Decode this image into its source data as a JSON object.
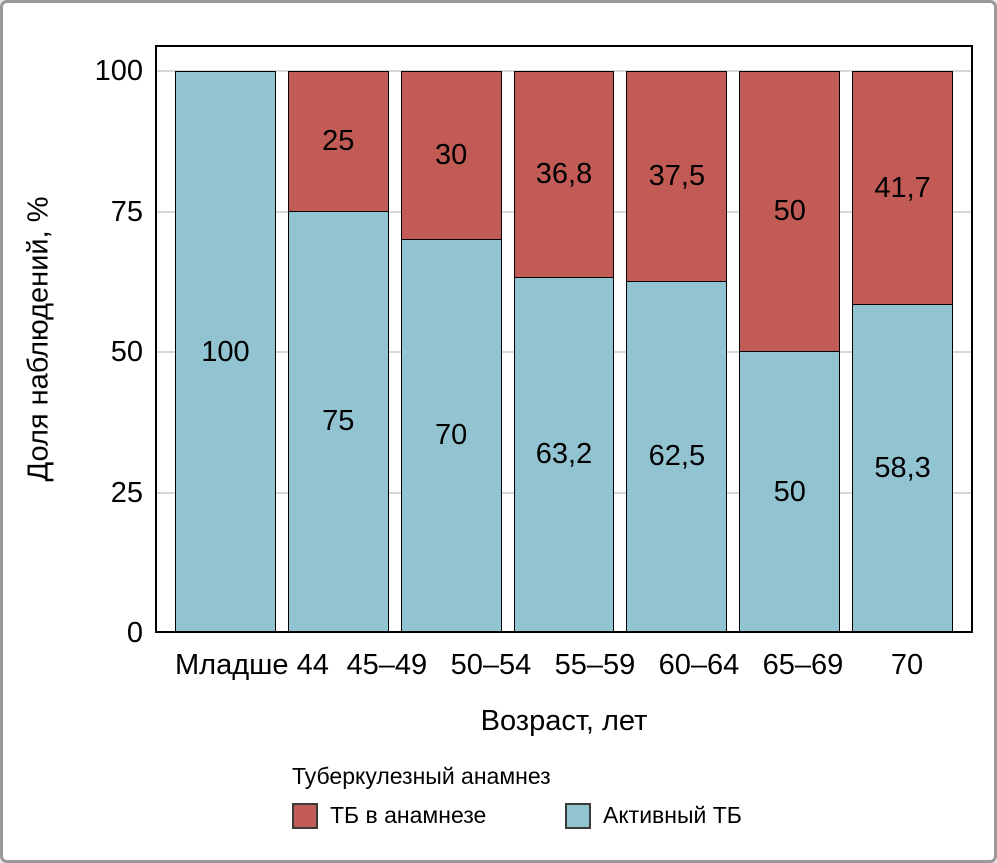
{
  "chart_data": {
    "type": "bar",
    "subtype": "stacked-percent",
    "orientation": "vertical",
    "title": "",
    "xlabel": "Возраст, лет",
    "ylabel": "Доля наблюдений, %",
    "ylim": [
      0,
      100
    ],
    "yticks": [
      0,
      25,
      50,
      75,
      100
    ],
    "grid": "horizontal-major",
    "categories": [
      "Младше 44",
      "45–49",
      "50–54",
      "55–59",
      "60–64",
      "65–69",
      "70"
    ],
    "series": [
      {
        "name": "Активный ТБ",
        "stack_order": "bottom",
        "color": "#92c3d1",
        "values": [
          100,
          75,
          70,
          63.2,
          62.5,
          50,
          58.3
        ],
        "labels": [
          "100",
          "75",
          "70",
          "63,2",
          "62,5",
          "50",
          "58,3"
        ]
      },
      {
        "name": "ТБ в анамнезе",
        "stack_order": "top",
        "color": "#c25b55",
        "values": [
          0,
          25,
          30,
          36.8,
          37.5,
          50,
          41.7
        ],
        "labels": [
          "",
          "25",
          "30",
          "36,8",
          "37,5",
          "50",
          "41,7"
        ]
      }
    ],
    "legend_title": "Туберкулезный анамнез",
    "legend_position": "bottom-left",
    "legend_items": [
      {
        "label": "ТБ в анамнезе",
        "color": "#c25b55"
      },
      {
        "label": "Активный ТБ",
        "color": "#92c3d1"
      }
    ]
  },
  "style_colors": {
    "segment_border": "#000000",
    "panel_border": "#000000",
    "gridline": "#d8d8d8",
    "figure_border": "#999999",
    "text": "#000000"
  }
}
